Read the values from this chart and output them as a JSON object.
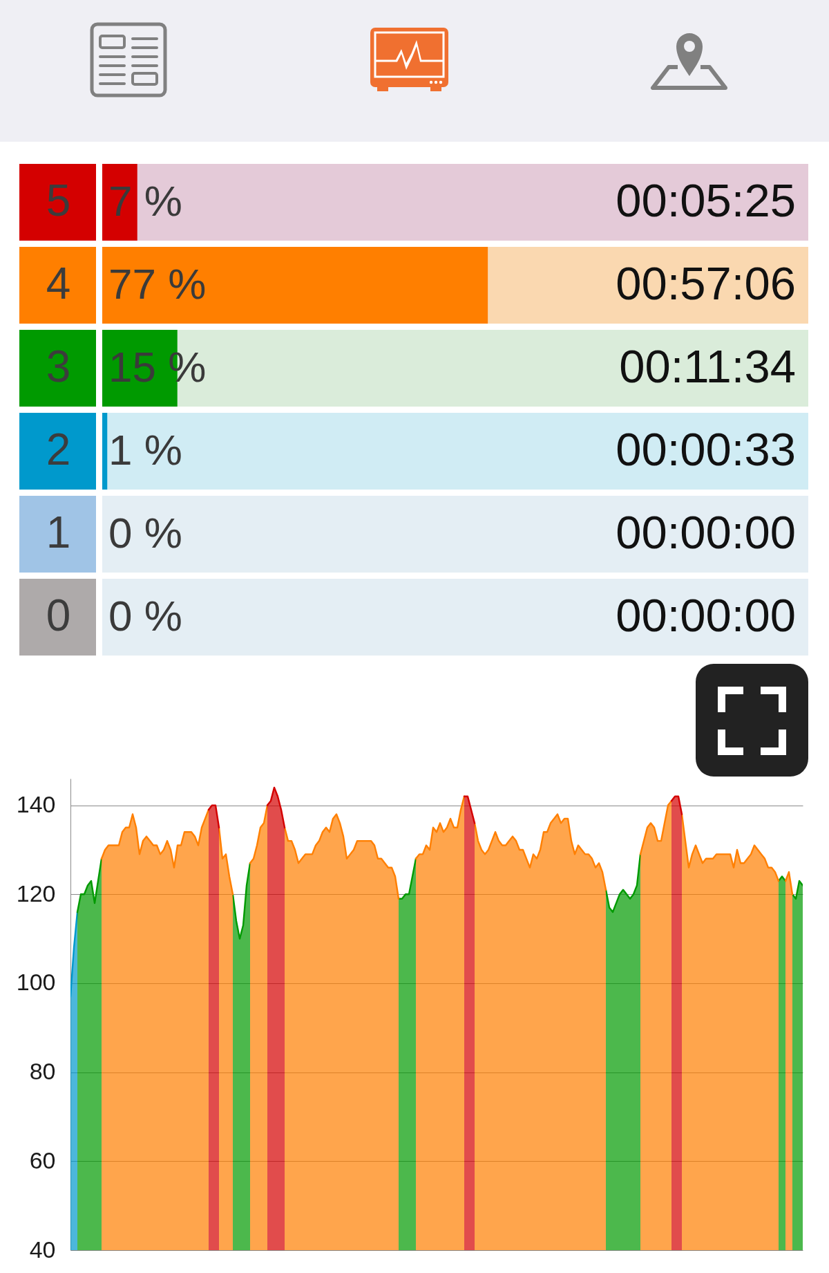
{
  "chart_data": [
    {
      "type": "bar",
      "orientation": "horizontal",
      "categories": [
        "5",
        "4",
        "3",
        "2",
        "1",
        "0"
      ],
      "values": [
        7,
        77,
        15,
        1,
        0,
        0
      ],
      "colors": [
        "#d40000",
        "#ff7f00",
        "#009a00",
        "#0099cc",
        "#a0c4e6",
        "#aeaaaa"
      ],
      "value_labels": [
        "7 %",
        "77 %",
        "15 %",
        "1 %",
        "0 %",
        "0 %"
      ],
      "annotations": [
        "00:05:25",
        "00:57:06",
        "00:11:34",
        "00:00:33",
        "00:00:00",
        "00:00:00"
      ],
      "bands": [
        {
          "axis": "y",
          "from": "5",
          "to": "5",
          "color": "#e4cad8"
        },
        {
          "axis": "y",
          "from": "4",
          "to": "4",
          "color": "#fad8b0"
        },
        {
          "axis": "y",
          "from": "3",
          "to": "3",
          "color": "#daecda"
        },
        {
          "axis": "y",
          "from": "2",
          "to": "2",
          "color": "#d0ecf4"
        },
        {
          "axis": "y",
          "from": "1",
          "to": "1",
          "color": "#e4eef4"
        },
        {
          "axis": "y",
          "from": "0",
          "to": "0",
          "color": "#e4eef4"
        }
      ],
      "xlim": [
        0,
        141
      ],
      "tick_labels": "y"
    },
    {
      "type": "area",
      "categories": [
        null,
        null,
        null,
        null,
        null,
        null,
        null,
        null,
        null,
        null,
        null,
        null,
        null,
        null,
        null,
        null,
        null,
        null,
        null,
        null,
        null,
        null,
        null,
        null,
        null,
        null,
        null,
        null,
        null,
        null,
        null,
        null,
        null,
        null,
        null,
        null,
        null,
        null,
        null,
        null,
        null,
        null,
        null,
        null,
        null,
        null,
        null,
        null,
        null,
        null,
        null,
        null,
        null,
        null,
        null,
        null,
        null,
        null,
        null,
        null,
        null,
        null,
        null,
        null,
        null,
        null,
        null,
        null,
        null,
        null,
        null,
        null,
        null,
        null,
        null,
        null,
        null,
        null,
        null,
        null,
        null,
        null,
        null,
        null,
        null,
        null,
        null,
        null,
        null,
        null,
        null,
        null,
        null,
        null,
        null,
        null,
        null,
        null,
        null,
        null,
        null,
        null,
        null,
        null,
        null,
        null,
        null,
        null,
        null,
        null,
        null,
        null,
        null,
        null,
        null,
        null,
        null,
        null,
        null,
        null,
        null,
        null,
        null,
        null,
        null,
        null,
        null,
        null,
        null,
        null,
        null,
        null,
        null,
        null,
        null,
        null,
        null,
        null,
        null,
        null,
        null,
        null,
        null,
        null,
        null,
        null,
        null,
        null,
        null,
        null,
        null,
        null,
        null,
        null,
        null,
        null,
        null,
        null,
        null,
        null,
        null,
        null,
        null,
        null,
        null,
        null,
        null,
        null,
        null,
        null,
        null,
        null,
        null,
        null,
        null,
        null,
        null,
        null,
        null,
        null,
        null,
        null,
        null,
        null,
        null,
        null,
        null,
        null,
        null,
        null,
        null,
        null,
        null,
        null,
        null,
        null,
        null,
        null,
        null,
        null,
        null,
        null,
        null,
        null,
        null,
        null,
        null,
        null,
        null,
        null,
        null,
        null,
        null
      ],
      "series": [
        {
          "color": "#0099cc",
          "values": [
            97,
            108,
            116,
            null,
            null,
            null,
            null,
            null,
            null,
            null,
            null,
            null,
            null,
            null,
            null,
            null,
            null,
            null,
            null,
            null,
            null,
            null,
            null,
            null,
            null,
            null,
            null,
            null,
            null,
            null,
            null,
            null,
            null,
            null,
            null,
            null,
            null,
            null,
            null,
            null,
            null,
            null,
            null,
            null,
            null,
            null,
            null,
            null,
            null,
            null,
            null,
            null,
            null,
            null,
            null,
            null,
            null,
            null,
            null,
            null,
            null,
            null,
            null,
            null,
            null,
            null,
            null,
            null,
            null,
            null,
            null,
            null,
            null,
            null,
            null,
            null,
            null,
            null,
            null,
            null,
            null,
            null,
            null,
            null,
            null,
            null,
            null,
            null,
            null,
            null,
            null,
            null,
            null,
            null,
            null,
            null,
            null,
            null,
            null,
            null,
            null,
            null,
            null,
            null,
            null,
            null,
            null,
            null,
            null,
            null,
            null,
            null,
            null,
            null,
            null,
            null,
            null,
            null,
            null,
            null,
            null,
            null,
            null,
            null,
            null,
            null,
            null,
            null,
            null,
            null,
            null,
            null,
            null,
            null,
            null,
            null,
            null,
            null,
            null,
            null,
            null,
            null,
            null,
            null,
            null,
            null,
            null,
            null,
            null,
            null,
            null,
            null,
            null,
            null,
            null,
            null,
            null,
            null,
            null,
            null,
            null,
            null,
            null,
            null,
            null,
            null,
            null,
            null,
            null,
            null,
            null,
            null,
            null,
            null,
            null,
            null,
            null,
            null,
            null,
            null,
            null,
            null,
            null,
            null,
            null,
            null,
            null,
            null,
            null,
            null,
            null,
            null,
            null,
            null,
            null,
            null,
            null,
            null,
            null,
            null,
            null,
            null,
            null,
            null,
            null,
            null,
            null,
            null,
            null,
            null,
            null,
            null,
            null
          ]
        },
        {
          "color": "#009a00",
          "values": [
            null,
            null,
            116,
            120,
            120,
            122,
            123,
            118,
            123,
            128,
            null,
            null,
            null,
            null,
            null,
            null,
            null,
            null,
            null,
            null,
            null,
            null,
            null,
            null,
            null,
            null,
            null,
            null,
            null,
            null,
            null,
            null,
            null,
            null,
            null,
            null,
            null,
            null,
            null,
            null,
            null,
            null,
            null,
            null,
            null,
            null,
            null,
            120,
            114,
            110,
            113,
            122,
            127,
            null,
            null,
            null,
            null,
            null,
            null,
            null,
            null,
            null,
            null,
            null,
            null,
            null,
            null,
            null,
            null,
            null,
            null,
            null,
            null,
            null,
            null,
            null,
            null,
            null,
            null,
            null,
            null,
            null,
            null,
            null,
            null,
            null,
            null,
            null,
            null,
            null,
            null,
            null,
            null,
            null,
            null,
            119,
            119,
            120,
            120,
            124,
            128,
            null,
            null,
            null,
            null,
            null,
            null,
            null,
            null,
            null,
            null,
            null,
            null,
            null,
            null,
            null,
            null,
            null,
            null,
            null,
            null,
            null,
            null,
            null,
            null,
            null,
            null,
            null,
            null,
            null,
            null,
            null,
            null,
            null,
            null,
            null,
            null,
            null,
            null,
            null,
            null,
            null,
            null,
            null,
            null,
            null,
            null,
            null,
            null,
            null,
            null,
            null,
            null,
            null,
            null,
            121,
            117,
            116,
            118,
            120,
            121,
            120,
            119,
            120,
            122,
            129,
            null,
            null,
            null,
            null,
            null,
            null,
            null,
            null,
            null,
            null,
            null,
            null,
            null,
            null,
            null,
            null,
            null,
            null,
            null,
            null,
            null,
            null,
            null,
            null,
            null,
            null,
            null,
            null,
            null,
            null,
            null,
            null,
            null,
            null,
            null,
            null,
            null,
            null,
            null,
            123,
            124,
            123,
            null,
            120,
            119,
            123,
            122
          ]
        },
        {
          "color": "#ff7f00",
          "values": [
            null,
            null,
            null,
            null,
            null,
            null,
            null,
            null,
            null,
            128,
            130,
            131,
            131,
            131,
            131,
            134,
            135,
            135,
            138,
            135,
            129,
            132,
            133,
            132,
            131,
            131,
            129,
            130,
            132,
            130,
            126,
            131,
            131,
            134,
            134,
            134,
            133,
            131,
            135,
            137,
            139,
            null,
            null,
            135,
            128,
            129,
            124,
            120,
            null,
            null,
            null,
            null,
            127,
            128,
            131,
            135,
            136,
            140,
            null,
            null,
            null,
            null,
            135,
            132,
            132,
            130,
            127,
            128,
            129,
            129,
            129,
            131,
            132,
            134,
            135,
            134,
            137,
            138,
            136,
            133,
            128,
            129,
            130,
            132,
            132,
            132,
            132,
            132,
            131,
            128,
            128,
            127,
            126,
            126,
            124,
            119,
            null,
            null,
            null,
            null,
            128,
            129,
            129,
            131,
            130,
            135,
            134,
            136,
            134,
            135,
            137,
            135,
            135,
            139,
            142,
            null,
            null,
            136,
            132,
            130,
            129,
            130,
            132,
            134,
            132,
            131,
            131,
            132,
            133,
            132,
            130,
            130,
            128,
            126,
            129,
            128,
            130,
            134,
            134,
            136,
            137,
            138,
            136,
            137,
            137,
            132,
            129,
            131,
            130,
            129,
            129,
            128,
            126,
            127,
            125,
            121,
            null,
            null,
            null,
            null,
            null,
            null,
            null,
            null,
            null,
            129,
            132,
            135,
            136,
            135,
            132,
            132,
            136,
            140,
            141,
            null,
            null,
            138,
            132,
            126,
            129,
            131,
            129,
            127,
            128,
            128,
            128,
            129,
            129,
            129,
            129,
            129,
            126,
            130,
            127,
            127,
            128,
            129,
            131,
            130,
            129,
            128,
            126,
            126,
            125,
            123,
            null,
            123,
            125,
            120,
            null,
            null,
            null
          ]
        },
        {
          "color": "#d40000",
          "values": [
            null,
            null,
            null,
            null,
            null,
            null,
            null,
            null,
            null,
            null,
            null,
            null,
            null,
            null,
            null,
            null,
            null,
            null,
            null,
            null,
            null,
            null,
            null,
            null,
            null,
            null,
            null,
            null,
            null,
            null,
            null,
            null,
            null,
            null,
            null,
            null,
            null,
            null,
            null,
            null,
            139,
            140,
            140,
            135,
            null,
            null,
            null,
            null,
            null,
            null,
            null,
            null,
            null,
            null,
            null,
            null,
            null,
            140,
            141,
            144,
            142,
            139,
            135,
            null,
            null,
            null,
            null,
            null,
            null,
            null,
            null,
            null,
            null,
            null,
            null,
            null,
            null,
            null,
            null,
            null,
            null,
            null,
            null,
            null,
            null,
            null,
            null,
            null,
            null,
            null,
            null,
            null,
            null,
            null,
            null,
            null,
            null,
            null,
            null,
            null,
            null,
            null,
            null,
            null,
            null,
            null,
            null,
            null,
            null,
            null,
            null,
            null,
            null,
            null,
            142,
            142,
            139,
            136,
            null,
            null,
            null,
            null,
            null,
            null,
            null,
            null,
            null,
            null,
            null,
            null,
            null,
            null,
            null,
            null,
            null,
            null,
            null,
            null,
            null,
            null,
            null,
            null,
            null,
            null,
            null,
            null,
            null,
            null,
            null,
            null,
            null,
            null,
            null,
            null,
            null,
            null,
            null,
            null,
            null,
            null,
            null,
            null,
            null,
            null,
            null,
            null,
            null,
            null,
            null,
            null,
            null,
            null,
            null,
            null,
            141,
            142,
            142,
            138,
            null,
            null,
            null,
            null,
            null,
            null,
            null,
            null,
            null,
            null,
            null,
            null,
            null,
            null,
            null,
            null,
            null,
            null,
            null,
            null,
            null,
            null,
            null,
            null,
            null,
            null,
            null,
            null,
            null,
            null,
            null,
            null,
            null,
            null,
            null
          ]
        }
      ],
      "ylim": [
        40,
        146
      ],
      "yticks": [
        40,
        60,
        80,
        100,
        120,
        140
      ],
      "grid": "y",
      "tick_labels": "y"
    }
  ]
}
